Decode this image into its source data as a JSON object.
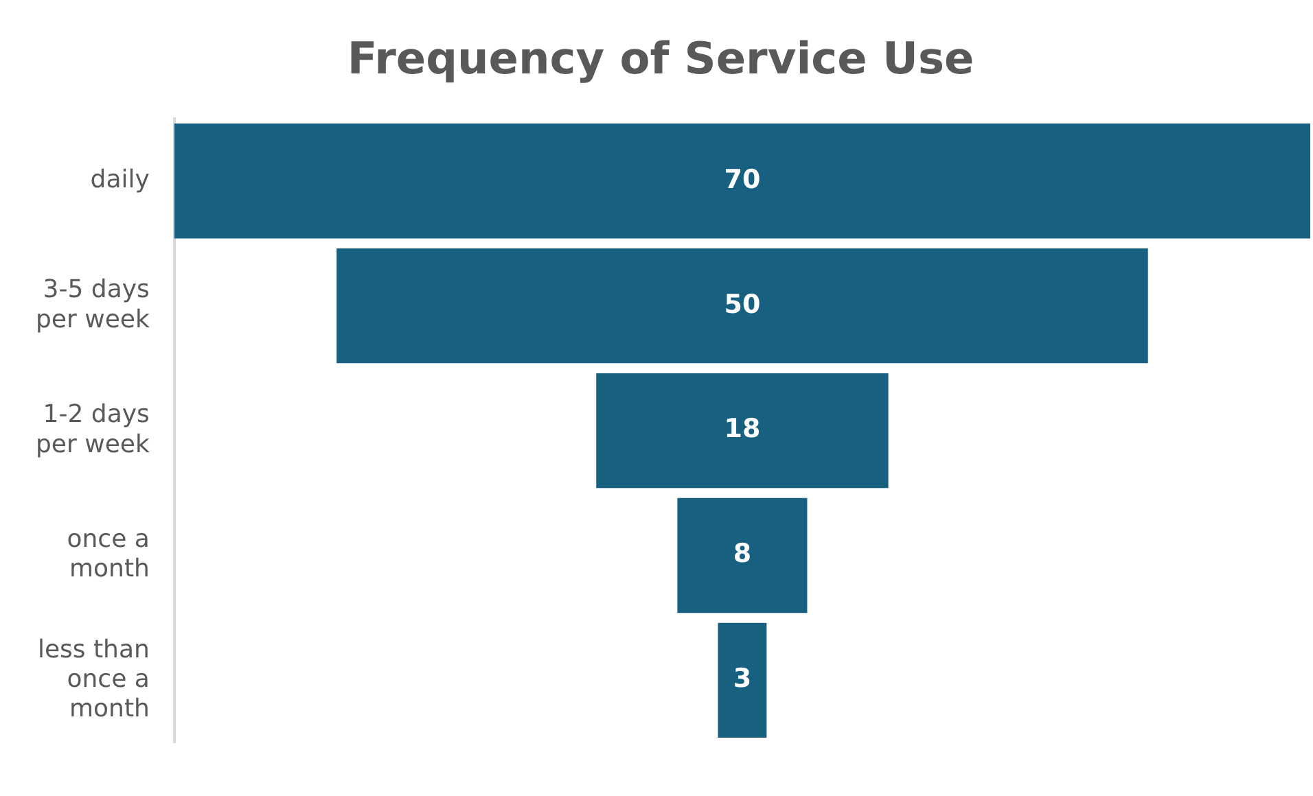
{
  "chart_data": {
    "type": "other",
    "title": "Frequency of Service Use",
    "categories": [
      "daily",
      "3-5 days per week",
      "1-2 days per week",
      "once a month",
      "less than once a month"
    ],
    "values": [
      70,
      50,
      18,
      8,
      3
    ],
    "color": "#17607f",
    "data_labels": true
  }
}
